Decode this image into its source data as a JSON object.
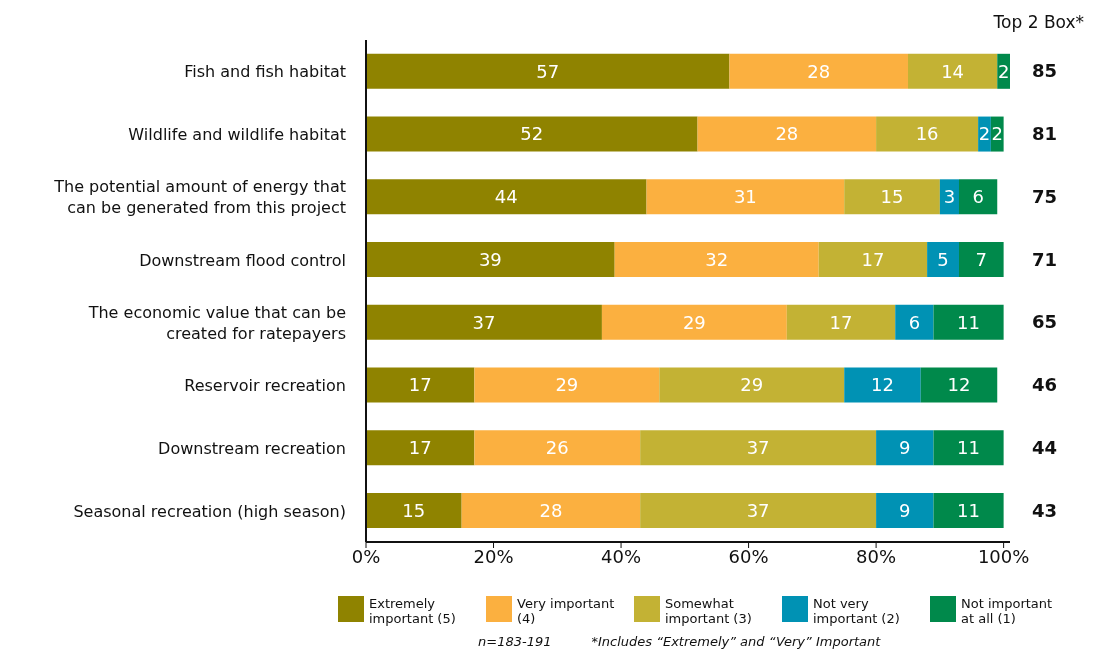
{
  "chart_data": {
    "type": "bar",
    "orientation": "horizontal",
    "stacked": true,
    "data_labels": true,
    "grid": false,
    "legend": "bottom",
    "categories": [
      "Fish and fish habitat",
      "Wildlife and wildlife habitat",
      "The potential amount of energy that can be generated from this project",
      "Downstream flood control",
      "The economic value that can be created for ratepayers",
      "Reservoir recreation",
      "Downstream recreation",
      "Seasonal recreation (high season)"
    ],
    "series": [
      {
        "name": "Extremely important (5)",
        "color": "#8f8300",
        "values": [
          57,
          52,
          44,
          39,
          37,
          17,
          17,
          15
        ]
      },
      {
        "name": "Very important (4)",
        "color": "#fbb040",
        "values": [
          28,
          28,
          31,
          32,
          29,
          29,
          26,
          28
        ]
      },
      {
        "name": "Somewhat important (3)",
        "color": "#c3b234",
        "values": [
          14,
          16,
          15,
          17,
          17,
          29,
          37,
          37
        ]
      },
      {
        "name": "Not very important (2)",
        "color": "#0092b4",
        "values": [
          null,
          2,
          3,
          5,
          6,
          12,
          9,
          9
        ]
      },
      {
        "name": "Not important at all (1)",
        "color": "#00894b",
        "values": [
          2,
          2,
          6,
          7,
          11,
          12,
          11,
          11
        ]
      }
    ],
    "xlim": [
      0,
      101
    ],
    "xticks": [
      {
        "value": 0,
        "label": "0%"
      },
      {
        "value": 20,
        "label": "20%"
      },
      {
        "value": 40,
        "label": "40%"
      },
      {
        "value": 60,
        "label": "60%"
      },
      {
        "value": 80,
        "label": "80%"
      },
      {
        "value": 100,
        "label": "100%"
      }
    ],
    "annotations": [
      "Top 2 Box*",
      "85",
      "81",
      "75",
      "71",
      "65",
      "46",
      "44",
      "43",
      "n=183-191",
      "*Includes “Extremely” and “Very” Important"
    ]
  }
}
